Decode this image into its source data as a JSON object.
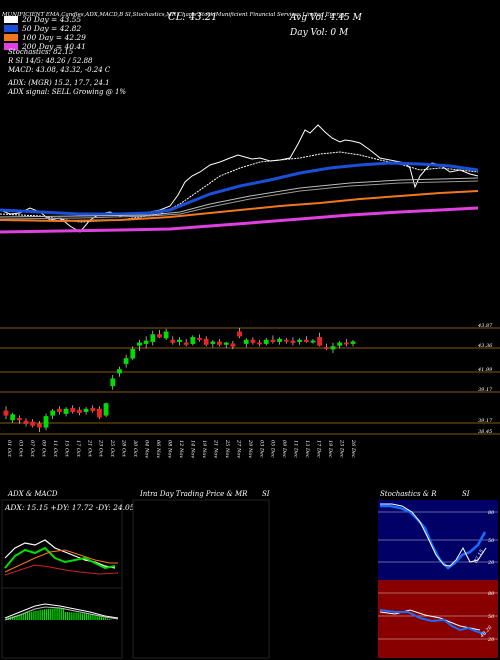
{
  "header": {
    "top_line": "MUNIFICIENT EMA,Candles,ADX,MACD,B   SI,Stochastics,MR  Charts Stock  Munificient Financial Services Limited Energy",
    "close": "CL: 43.21",
    "avg_vol": "Avg Vol: 4.45  M",
    "day_vol": "Day Vol: 0   M",
    "legend": [
      {
        "label": "20  Day = 43.55",
        "color": "#ffffff"
      },
      {
        "label": "50  Day = 42.82",
        "color": "#1a4fd8"
      },
      {
        "label": "100  Day = 42.29",
        "color": "#f07820"
      },
      {
        "label": "200  Day = 40.41",
        "color": "#e040e0"
      }
    ],
    "stochastics": "Stochastics: 82.15",
    "si_line": "R                SI 14/5: 48.26  / 52.88",
    "macd": "MACD: 43.08, 43.32,  -0.24  C",
    "adx": "ADX:                         (MGR) 15.2,  17.7,  24.1",
    "adx_signal": "ADX  signal: SELL Growing @ 1%"
  },
  "colors": {
    "background": "#000000",
    "bull": "#00dd00",
    "bear": "#ee2222",
    "ema20": "#ffffff",
    "ema50": "#1a4fd8",
    "ema100": "#f07820",
    "ema200": "#e040e0",
    "level_line": "#b07818"
  },
  "price_levels": [
    "43.87",
    "43.36",
    "41.99",
    "39.17",
    "39.17",
    "38.45"
  ],
  "dates": [
    "01 Oct",
    "03 Oct",
    "07 Oct",
    "09 Oct",
    "11 Oct",
    "15 Oct",
    "17 Oct",
    "21 Oct",
    "23 Oct",
    "25 Oct",
    "28 Oct",
    "30 Oct",
    "04 Nov",
    "06 Nov",
    "08 Nov",
    "12 Nov",
    "14 Nov",
    "19 Nov",
    "21 Nov",
    "25 Nov",
    "27 Nov",
    "29 Nov",
    "03 Dec",
    "05 Dec",
    "09 Dec",
    "11 Dec",
    "13 Dec",
    "17 Dec",
    "19 Dec",
    "23 Dec",
    "26 Dec"
  ],
  "panels": {
    "adx_macd": {
      "title": "ADX  & MACD",
      "values": "ADX: 15.15  +DY: 17.72  -DY: 24.05"
    },
    "intraday": {
      "title": "Intra Day Trading Price  & MR",
      "suffix": "SI"
    },
    "stochastics": {
      "title": "Stochastics & R",
      "suffix": "SI",
      "upper_ticks": [
        "80",
        "50",
        "20"
      ],
      "lower_ticks": [
        "80",
        "50",
        "20"
      ],
      "upper_label": "82.15",
      "lower_label": "48.26"
    }
  },
  "chart_data": {
    "type": "candlestick",
    "candles": [
      {
        "o": 39.45,
        "h": 39.7,
        "l": 39.0,
        "c": 39.2
      },
      {
        "o": 38.95,
        "h": 39.35,
        "l": 38.8,
        "c": 39.25
      },
      {
        "o": 39.05,
        "h": 39.2,
        "l": 38.75,
        "c": 38.95
      },
      {
        "o": 38.9,
        "h": 39.05,
        "l": 38.6,
        "c": 38.75
      },
      {
        "o": 38.85,
        "h": 39.0,
        "l": 38.55,
        "c": 38.65
      },
      {
        "o": 38.75,
        "h": 38.9,
        "l": 38.3,
        "c": 38.55
      },
      {
        "o": 38.55,
        "h": 39.3,
        "l": 38.4,
        "c": 39.15
      },
      {
        "o": 39.2,
        "h": 39.55,
        "l": 39.0,
        "c": 39.45
      },
      {
        "o": 39.55,
        "h": 39.7,
        "l": 39.25,
        "c": 39.4
      },
      {
        "o": 39.3,
        "h": 39.65,
        "l": 39.15,
        "c": 39.55
      },
      {
        "o": 39.6,
        "h": 39.75,
        "l": 39.3,
        "c": 39.4
      },
      {
        "o": 39.5,
        "h": 39.65,
        "l": 39.2,
        "c": 39.35
      },
      {
        "o": 39.4,
        "h": 39.65,
        "l": 39.25,
        "c": 39.55
      },
      {
        "o": 39.6,
        "h": 39.75,
        "l": 39.35,
        "c": 39.45
      },
      {
        "o": 39.55,
        "h": 39.7,
        "l": 39.0,
        "c": 39.1
      },
      {
        "o": 39.2,
        "h": 39.9,
        "l": 39.1,
        "c": 39.85
      },
      {
        "o": 40.8,
        "h": 41.4,
        "l": 40.6,
        "c": 41.2
      },
      {
        "o": 41.5,
        "h": 41.85,
        "l": 41.3,
        "c": 41.7
      },
      {
        "o": 42.0,
        "h": 42.5,
        "l": 41.8,
        "c": 42.3
      },
      {
        "o": 42.3,
        "h": 42.95,
        "l": 42.2,
        "c": 42.8
      },
      {
        "o": 43.0,
        "h": 43.3,
        "l": 42.7,
        "c": 43.15
      },
      {
        "o": 43.1,
        "h": 43.5,
        "l": 42.85,
        "c": 43.25
      },
      {
        "o": 43.2,
        "h": 43.8,
        "l": 43.0,
        "c": 43.6
      },
      {
        "o": 43.6,
        "h": 43.85,
        "l": 43.4,
        "c": 43.45
      },
      {
        "o": 43.4,
        "h": 43.9,
        "l": 43.3,
        "c": 43.75
      },
      {
        "o": 43.3,
        "h": 43.5,
        "l": 43.05,
        "c": 43.15
      },
      {
        "o": 43.2,
        "h": 43.45,
        "l": 43.0,
        "c": 43.3
      },
      {
        "o": 43.15,
        "h": 43.35,
        "l": 42.95,
        "c": 43.05
      },
      {
        "o": 43.1,
        "h": 43.55,
        "l": 43.0,
        "c": 43.45
      },
      {
        "o": 43.4,
        "h": 43.6,
        "l": 43.2,
        "c": 43.35
      },
      {
        "o": 43.35,
        "h": 43.5,
        "l": 42.95,
        "c": 43.05
      },
      {
        "o": 43.1,
        "h": 43.3,
        "l": 42.9,
        "c": 43.2
      },
      {
        "o": 43.2,
        "h": 43.35,
        "l": 42.95,
        "c": 43.05
      },
      {
        "o": 43.05,
        "h": 43.2,
        "l": 42.85,
        "c": 43.15
      },
      {
        "o": 43.1,
        "h": 43.25,
        "l": 42.8,
        "c": 42.95
      },
      {
        "o": 43.75,
        "h": 43.95,
        "l": 43.4,
        "c": 43.5
      },
      {
        "o": 43.1,
        "h": 43.4,
        "l": 42.9,
        "c": 43.3
      },
      {
        "o": 43.3,
        "h": 43.45,
        "l": 43.05,
        "c": 43.15
      },
      {
        "o": 43.15,
        "h": 43.3,
        "l": 42.95,
        "c": 43.1
      },
      {
        "o": 43.1,
        "h": 43.4,
        "l": 43.0,
        "c": 43.3
      },
      {
        "o": 43.3,
        "h": 43.55,
        "l": 43.1,
        "c": 43.2
      },
      {
        "o": 43.2,
        "h": 43.45,
        "l": 43.05,
        "c": 43.35
      },
      {
        "o": 43.3,
        "h": 43.4,
        "l": 43.1,
        "c": 43.25
      },
      {
        "o": 43.25,
        "h": 43.45,
        "l": 43.0,
        "c": 43.15
      },
      {
        "o": 43.2,
        "h": 43.4,
        "l": 43.05,
        "c": 43.3
      },
      {
        "o": 43.3,
        "h": 43.5,
        "l": 43.15,
        "c": 43.2
      },
      {
        "o": 43.2,
        "h": 43.35,
        "l": 43.1,
        "c": 43.25
      },
      {
        "o": 43.45,
        "h": 43.7,
        "l": 42.95,
        "c": 43.0
      },
      {
        "o": 42.9,
        "h": 43.1,
        "l": 42.75,
        "c": 42.85
      },
      {
        "o": 42.8,
        "h": 43.15,
        "l": 42.6,
        "c": 42.95
      },
      {
        "o": 43.0,
        "h": 43.25,
        "l": 42.85,
        "c": 43.15
      },
      {
        "o": 43.15,
        "h": 43.35,
        "l": 42.95,
        "c": 43.1
      },
      {
        "o": 43.1,
        "h": 43.3,
        "l": 42.95,
        "c": 43.21
      }
    ]
  }
}
